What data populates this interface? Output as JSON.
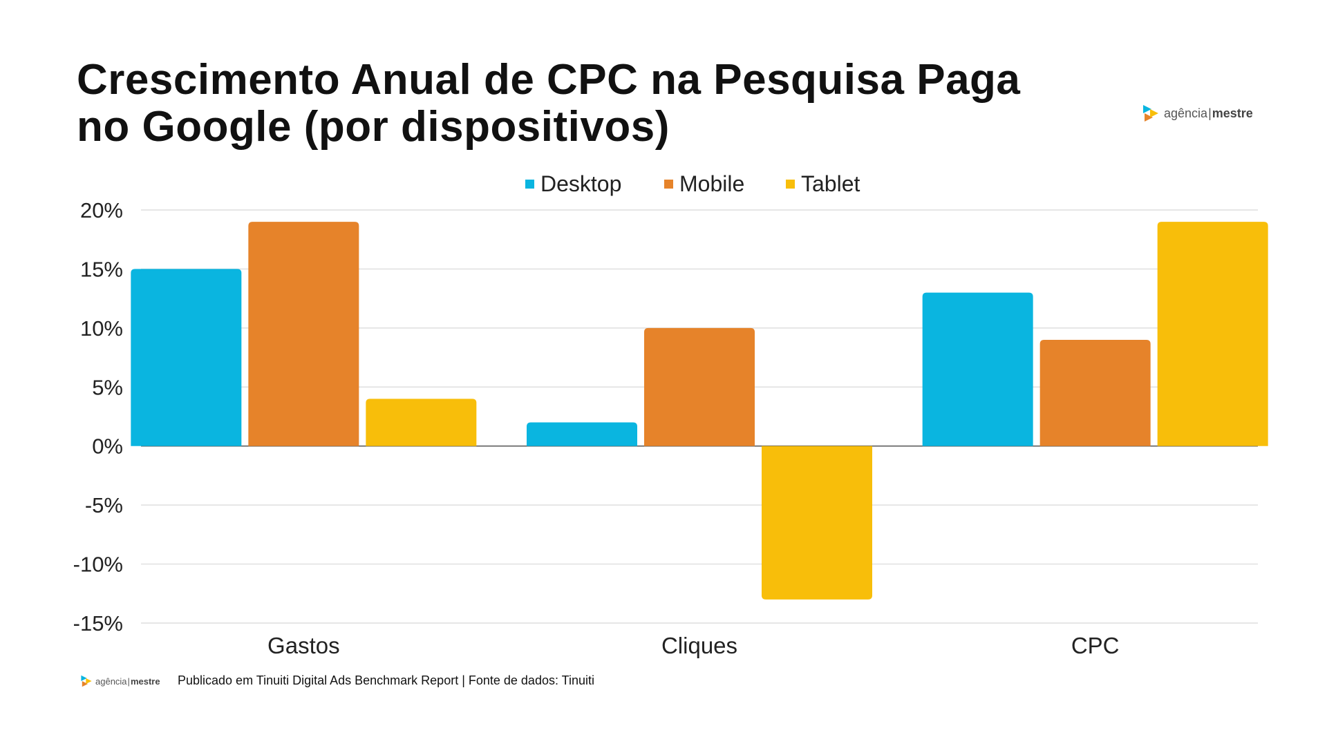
{
  "title": {
    "line1": "Crescimento Anual de CPC na Pesquisa Paga",
    "line2": "no Google (por dispositivos)"
  },
  "brand": {
    "name_part1": "agência",
    "separator": "|",
    "name_part2": "mestre",
    "colors": [
      "#0ab5e0",
      "#e6832a",
      "#f8be0a"
    ]
  },
  "footnote": "Publicado em Tinuiti Digital Ads Benchmark Report | Fonte de dados: Tinuiti",
  "chart_data": {
    "type": "bar",
    "categories": [
      "Gastos",
      "Cliques",
      "CPC"
    ],
    "series": [
      {
        "name": "Desktop",
        "color": "#0ab5e0",
        "values": [
          15,
          2,
          13
        ]
      },
      {
        "name": "Mobile",
        "color": "#e6832a",
        "values": [
          19,
          10,
          9
        ]
      },
      {
        "name": "Tablet",
        "color": "#f8be0a",
        "values": [
          4,
          -13,
          19
        ]
      }
    ],
    "ylim": [
      -15,
      20
    ],
    "yticks": [
      20,
      15,
      10,
      5,
      0,
      -5,
      -10,
      -15
    ],
    "ytick_labels": [
      "20%",
      "15%",
      "10%",
      "5%",
      "0%",
      "-5%",
      "-10%",
      "-15%"
    ],
    "grid": true,
    "legend_position": "top-center",
    "xlabel": "",
    "ylabel": ""
  }
}
